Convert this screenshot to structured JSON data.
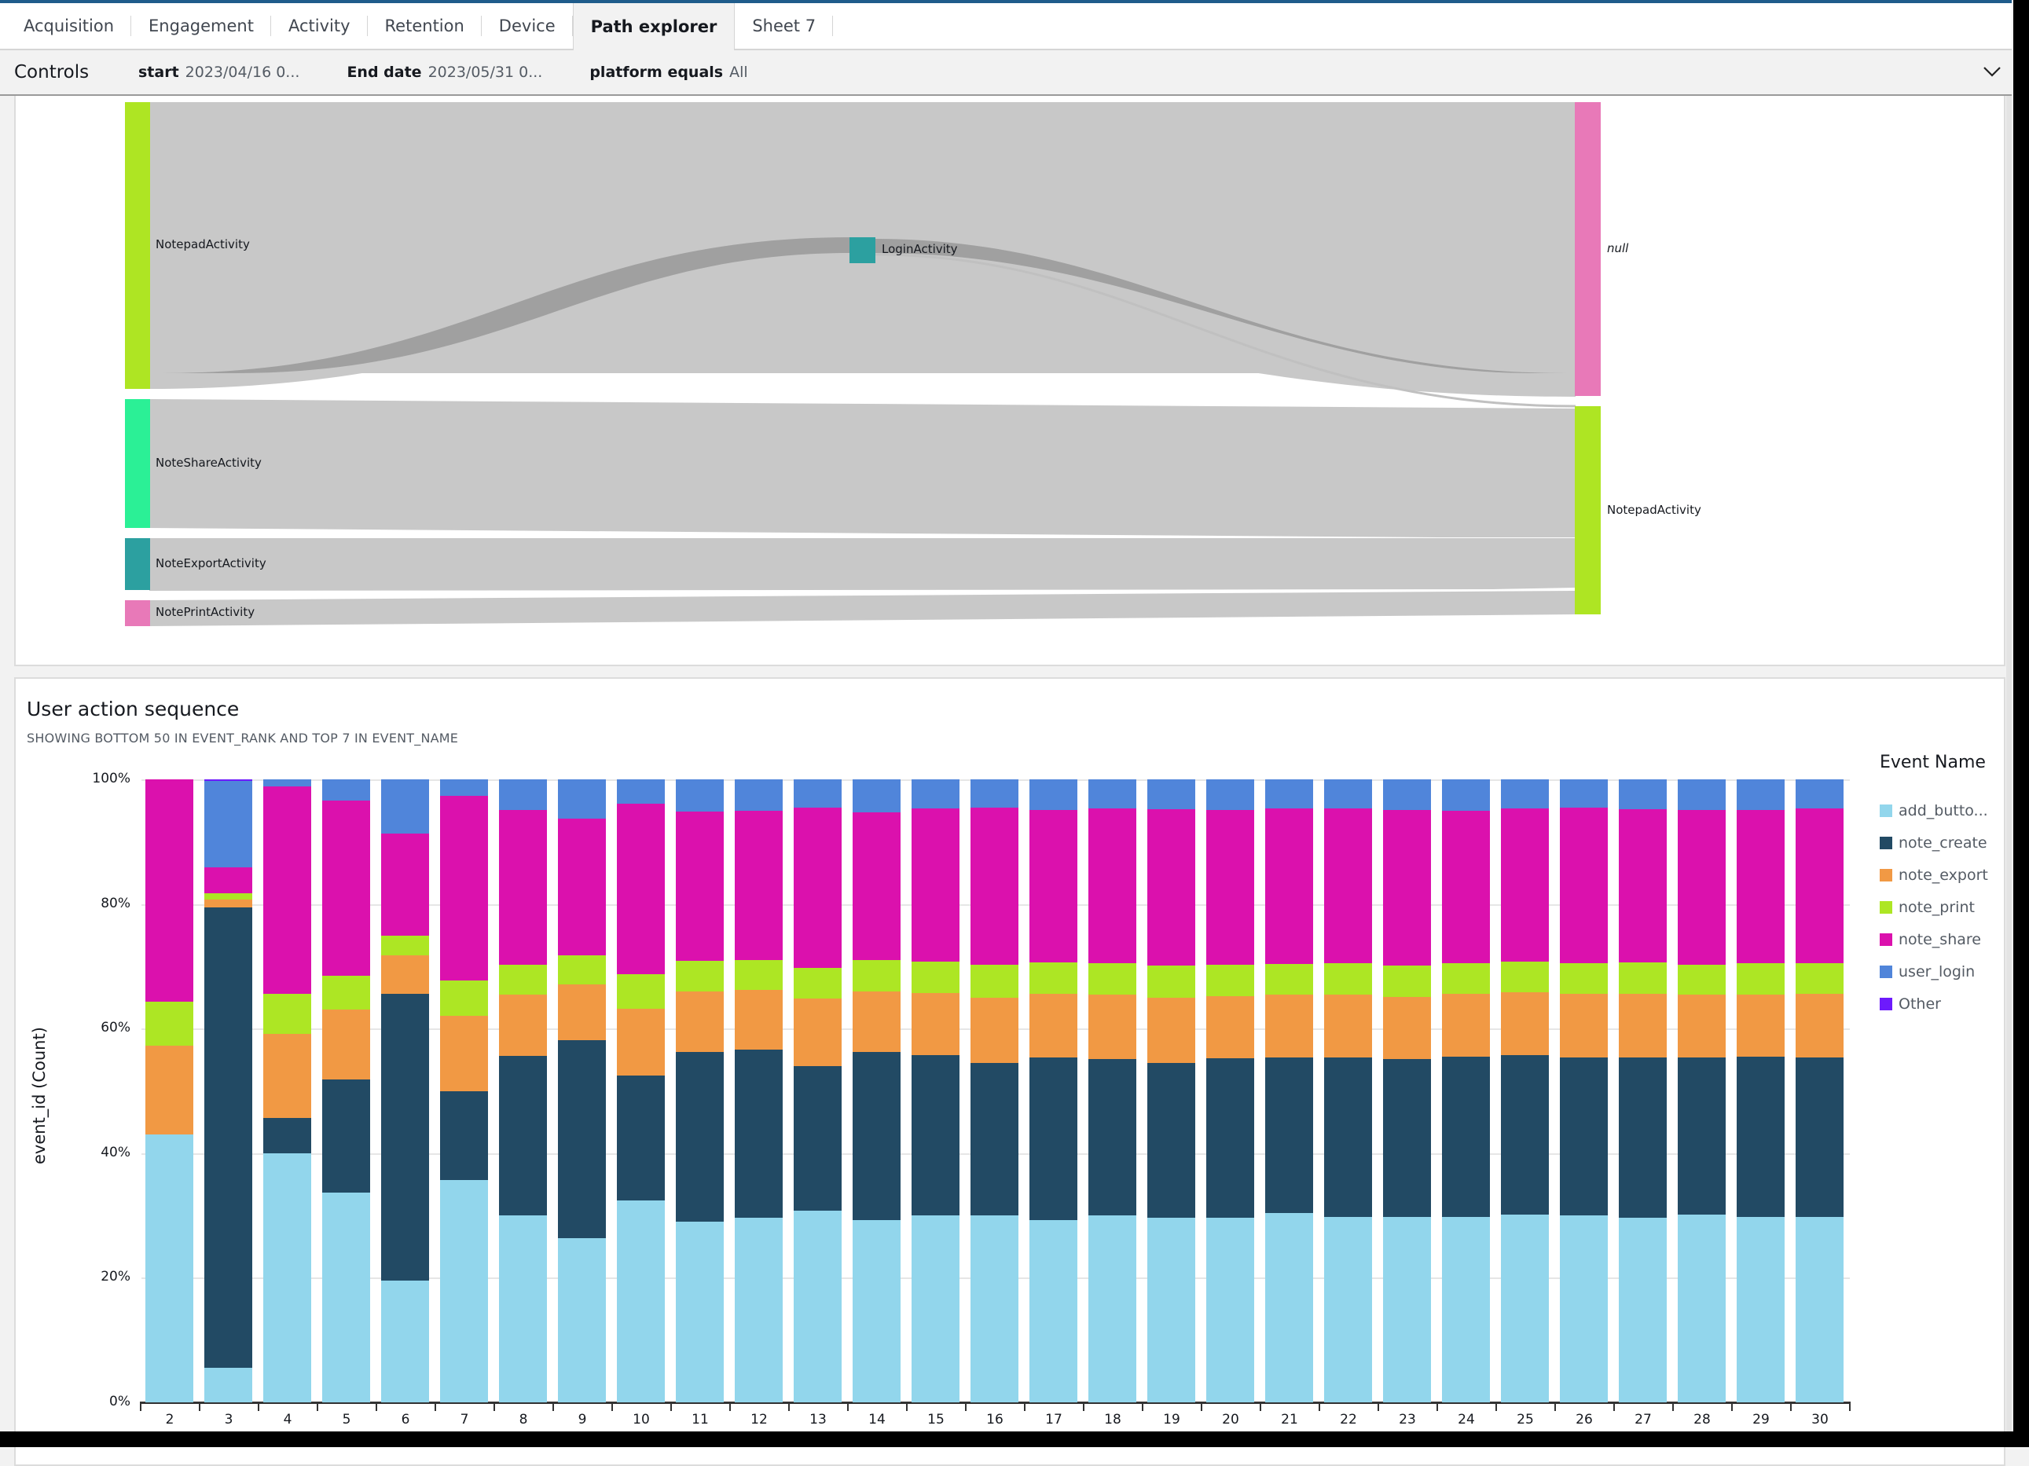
{
  "tabs": [
    {
      "label": "Acquisition",
      "active": false
    },
    {
      "label": "Engagement",
      "active": false
    },
    {
      "label": "Activity",
      "active": false
    },
    {
      "label": "Retention",
      "active": false
    },
    {
      "label": "Device",
      "active": false
    },
    {
      "label": "Path explorer",
      "active": true
    },
    {
      "label": "Sheet 7",
      "active": false
    }
  ],
  "controls": {
    "title": "Controls",
    "items": [
      {
        "label": "start",
        "value": "2023/04/16 0..."
      },
      {
        "label": "End date",
        "value": "2023/05/31 0..."
      },
      {
        "label": "platform equals",
        "value": "All"
      }
    ]
  },
  "sankey": {
    "source_nodes": [
      {
        "label": "NotepadActivity",
        "color": "#aee523"
      },
      {
        "label": "NoteShareActivity",
        "color": "#2bf096"
      },
      {
        "label": "NoteExportActivity",
        "color": "#2ca0a0"
      },
      {
        "label": "NotePrintActivity",
        "color": "#e879b8"
      }
    ],
    "middle_nodes": [
      {
        "label": "LoginActivity",
        "color": "#2ca0a0"
      }
    ],
    "target_nodes": [
      {
        "label": "null",
        "color": "#e879b8"
      },
      {
        "label": "NotepadActivity",
        "color": "#aee523"
      }
    ],
    "link_color": "#c8c8c8",
    "highlight_link_color": "#a0a0a0"
  },
  "chart": {
    "title": "User action sequence",
    "subtitle": "SHOWING BOTTOM 50 IN EVENT_RANK AND TOP 7 IN EVENT_NAME",
    "ylabel": "event_id (Count)",
    "yticks": [
      "100%",
      "80%",
      "60%",
      "40%",
      "20%",
      "0%"
    ],
    "legend_title": "Event Name",
    "legend": [
      {
        "label": "add_butto...",
        "color": "#92d6ec"
      },
      {
        "label": "note_create",
        "color": "#224a64"
      },
      {
        "label": "note_export",
        "color": "#f19944"
      },
      {
        "label": "note_print",
        "color": "#ade624"
      },
      {
        "label": "note_share",
        "color": "#db11ad"
      },
      {
        "label": "user_login",
        "color": "#5085da"
      },
      {
        "label": "Other",
        "color": "#6d1afc"
      }
    ]
  },
  "chart_data": {
    "type": "bar",
    "stacked": true,
    "normalized": true,
    "title": "User action sequence",
    "subtitle": "SHOWING BOTTOM 50 IN EVENT_RANK AND TOP 7 IN EVENT_NAME",
    "xlabel": "",
    "ylabel": "event_id (Count)",
    "ylim": [
      0,
      100
    ],
    "yticks": [
      "0%",
      "20%",
      "40%",
      "60%",
      "80%",
      "100%"
    ],
    "grid": true,
    "legend_position": "right",
    "categories": [
      "2",
      "3",
      "4",
      "5",
      "6",
      "7",
      "8",
      "9",
      "10",
      "11",
      "12",
      "13",
      "14",
      "15",
      "16",
      "17",
      "18",
      "19",
      "20",
      "21",
      "22",
      "23",
      "24",
      "25",
      "26",
      "27",
      "28",
      "29",
      "30"
    ],
    "series": [
      {
        "name": "add_butto...",
        "values": [
          43.0,
          5.5,
          40.0,
          33.7,
          19.5,
          35.7,
          30.0,
          26.4,
          32.4,
          29.0,
          29.6,
          30.8,
          29.2,
          30.0,
          30.0,
          29.3,
          30.0,
          29.8,
          29.6,
          30.4,
          29.8,
          29.8,
          29.8,
          30.2,
          30.0,
          29.6,
          30.2,
          29.8,
          29.8
        ]
      },
      {
        "name": "note_create",
        "values": [
          0.0,
          74.0,
          5.7,
          18.1,
          46.1,
          14.2,
          25.6,
          32.0,
          20.0,
          27.2,
          27.0,
          23.2,
          27.0,
          25.7,
          24.5,
          26.1,
          25.1,
          25.1,
          25.6,
          25.0,
          25.6,
          25.3,
          25.7,
          25.6,
          25.3,
          25.7,
          25.1,
          25.7,
          25.5
        ]
      },
      {
        "name": "note_export",
        "values": [
          14.3,
          1.2,
          13.4,
          11.2,
          6.1,
          12.2,
          9.9,
          8.9,
          10.8,
          9.8,
          9.6,
          10.8,
          9.8,
          10.0,
          10.5,
          10.3,
          10.4,
          10.5,
          10.0,
          10.0,
          10.0,
          10.0,
          10.1,
          10.0,
          10.3,
          10.3,
          10.1,
          10.0,
          10.3
        ]
      },
      {
        "name": "note_print",
        "values": [
          7.0,
          1.0,
          6.5,
          5.5,
          3.2,
          5.6,
          4.8,
          4.7,
          5.5,
          4.9,
          4.8,
          4.9,
          5.0,
          5.0,
          5.2,
          5.0,
          5.0,
          5.2,
          5.0,
          5.0,
          5.1,
          5.0,
          4.9,
          5.0,
          4.9,
          5.0,
          4.9,
          5.0,
          4.9
        ]
      },
      {
        "name": "note_share",
        "values": [
          35.7,
          4.2,
          33.3,
          28.1,
          16.4,
          29.6,
          24.8,
          22.1,
          27.4,
          23.9,
          24.0,
          25.8,
          23.7,
          24.7,
          25.3,
          24.5,
          24.8,
          25.3,
          24.9,
          24.9,
          24.9,
          25.0,
          24.4,
          24.6,
          25.0,
          24.6,
          24.8,
          24.6,
          24.9
        ]
      },
      {
        "name": "user_login",
        "values": [
          0.0,
          13.9,
          1.1,
          3.4,
          8.7,
          2.7,
          4.9,
          6.3,
          3.9,
          5.2,
          5.0,
          4.5,
          5.3,
          4.6,
          4.5,
          4.9,
          4.7,
          4.8,
          4.9,
          4.7,
          4.6,
          4.9,
          5.1,
          4.6,
          4.5,
          4.8,
          4.9,
          4.9,
          4.6
        ]
      },
      {
        "name": "Other",
        "values": [
          0.0,
          0.2,
          0,
          0,
          0,
          0,
          0,
          0,
          0,
          0,
          0,
          0,
          0,
          0,
          0,
          0,
          0,
          0,
          0,
          0,
          0,
          0,
          0,
          0,
          0,
          0,
          0,
          0,
          0
        ]
      }
    ]
  }
}
